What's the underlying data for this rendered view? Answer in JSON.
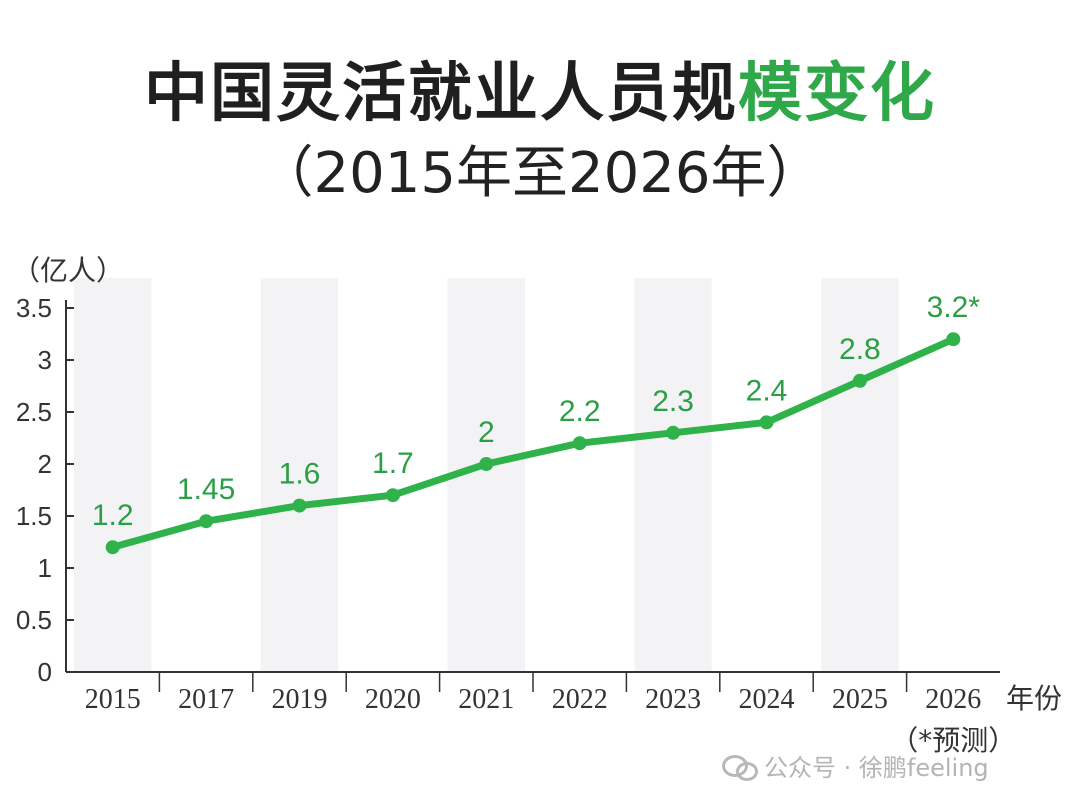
{
  "title_main": "中国灵活就业人员规",
  "title_accent": "模变化",
  "subtitle": "（2015年至2026年）",
  "watermark": "公众号 · 徐鹏feeling",
  "watermark_icon": "chat-bubbles-icon",
  "colors": {
    "line": "#2fb24a",
    "label": "#2a9f45",
    "axis": "#333333",
    "band": "#eeeef2"
  },
  "chart_data": {
    "type": "line",
    "title": "中国灵活就业人员规模变化",
    "subtitle": "（2015年至2026年）",
    "ylabel": "（亿人）",
    "xlabel": "年份",
    "categories": [
      "2015",
      "2017",
      "2019",
      "2020",
      "2021",
      "2022",
      "2023",
      "2024",
      "2025",
      "2026"
    ],
    "x_note": "（*预测）",
    "values": [
      1.2,
      1.45,
      1.6,
      1.7,
      2,
      2.2,
      2.3,
      2.4,
      2.8,
      3.2
    ],
    "data_labels": [
      "1.2",
      "1.45",
      "1.6",
      "1.7",
      "2",
      "2.2",
      "2.3",
      "2.4",
      "2.8",
      "3.2*"
    ],
    "yticks": [
      "0",
      "0.5",
      "1",
      "1.5",
      "2",
      "2.5",
      "3",
      "3.5"
    ],
    "ylim": [
      0,
      3.5
    ],
    "grid": false
  }
}
